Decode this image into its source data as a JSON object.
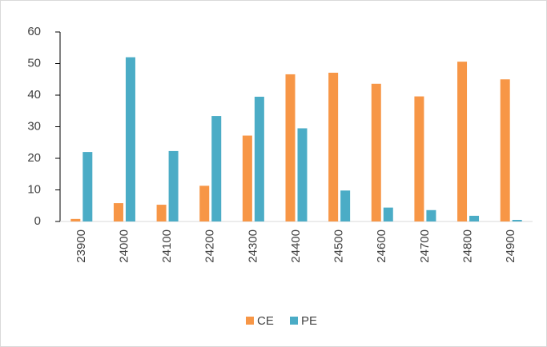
{
  "chart_data": {
    "type": "bar",
    "categories": [
      "23900",
      "24000",
      "24100",
      "24200",
      "24300",
      "24400",
      "24500",
      "24600",
      "24700",
      "24800",
      "24900"
    ],
    "series": [
      {
        "name": "CE",
        "color": "#f79646",
        "values": [
          0.8,
          5.8,
          5.3,
          11.3,
          27.2,
          46.6,
          47.1,
          43.6,
          39.6,
          50.6,
          45.0
        ]
      },
      {
        "name": "PE",
        "color": "#4bacc6",
        "values": [
          22.0,
          52.0,
          22.3,
          33.4,
          39.5,
          29.5,
          9.8,
          4.4,
          3.6,
          1.8,
          0.5
        ]
      }
    ],
    "ylim": [
      0,
      60
    ],
    "yticks": [
      0,
      10,
      20,
      30,
      40,
      50,
      60
    ],
    "legend": "bottom"
  }
}
